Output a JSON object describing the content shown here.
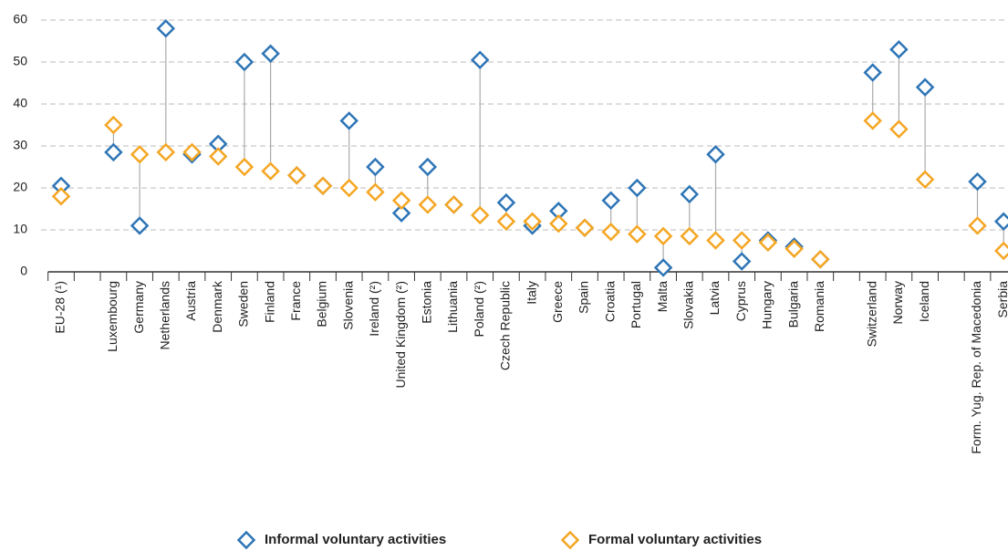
{
  "chart_data": {
    "type": "dot",
    "categories": [
      "EU-28 (¹)",
      null,
      "Luxembourg",
      "Germany",
      "Netherlands",
      "Austria",
      "Denmark",
      "Sweden",
      "Finland",
      "France",
      "Belgium",
      "Slovenia",
      "Ireland (²)",
      "United Kingdom (²)",
      "Estonia",
      "Lithuania",
      "Poland (²)",
      "Czech Republic",
      "Italy",
      "Greece",
      "Spain",
      "Croatia",
      "Portugal",
      "Malta",
      "Slovakia",
      "Latvia",
      "Cyprus",
      "Hungary",
      "Bulgaria",
      "Romania",
      null,
      "Switzerland",
      "Norway",
      "Iceland",
      null,
      "Form. Yug. Rep. of Macedonia",
      "Serbia"
    ],
    "series": [
      {
        "name": "Informal voluntary activities",
        "color": "#2e75b6",
        "values": [
          20.5,
          null,
          28.5,
          11,
          58,
          28,
          30.5,
          50,
          52,
          23,
          20.5,
          36,
          25,
          14,
          25,
          16,
          50.5,
          16.5,
          11,
          14.5,
          10.5,
          17,
          20,
          1,
          18.5,
          28,
          2.5,
          7.5,
          6,
          3,
          null,
          47.5,
          53,
          44,
          null,
          21.5,
          12
        ]
      },
      {
        "name": "Formal voluntary activities",
        "color": "#f5a623",
        "values": [
          18,
          null,
          35,
          28,
          28.5,
          28.5,
          27.5,
          25,
          24,
          23,
          20.5,
          20,
          19,
          17,
          16,
          16,
          13.5,
          12,
          12,
          11.5,
          10.5,
          9.5,
          9,
          8.5,
          8.5,
          7.5,
          7.5,
          7,
          5.5,
          3,
          null,
          36,
          34,
          22,
          null,
          11,
          5
        ]
      }
    ],
    "ylim": [
      0,
      60
    ],
    "yticks": [
      0,
      10,
      20,
      30,
      40,
      50,
      60
    ],
    "grid": true
  }
}
